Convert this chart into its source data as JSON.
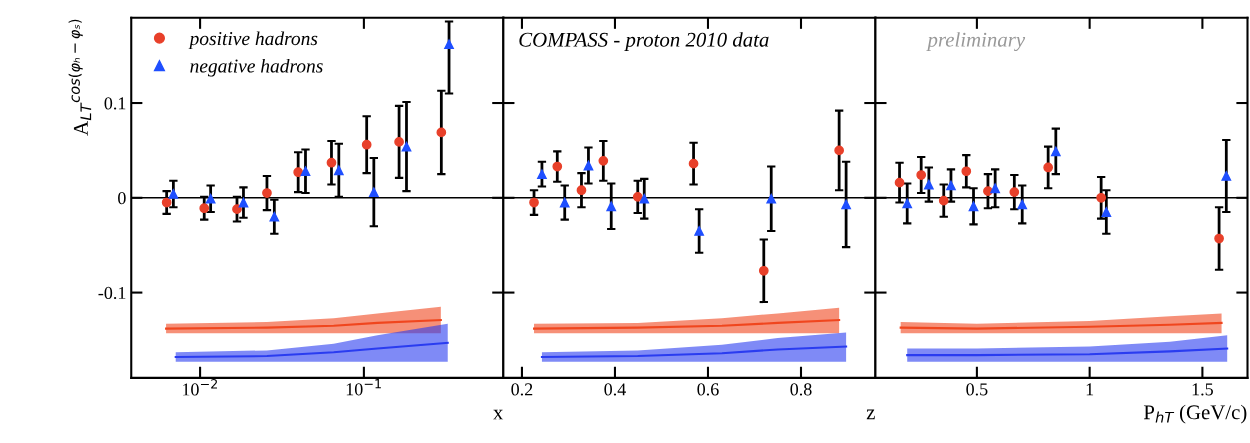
{
  "chart_data": [
    {
      "type": "scatter",
      "xlabel": "x",
      "ylabel": "A$_{LT}$$^{cos(φₕ−φₛ)}$",
      "log": "x",
      "xlim": [
        0.0038,
        0.71
      ],
      "ylim": [
        -0.19,
        0.19
      ],
      "xticks": [
        {
          "value": 0.01,
          "label": "10$^{−2}$"
        },
        {
          "value": 0.1,
          "label": "10$^{−1}$"
        }
      ],
      "yticks": [
        {
          "value": -0.1,
          "label": "-0.1"
        },
        0,
        0.1
      ],
      "legend": "top left",
      "ref_lines": [
        {
          "axis": "y",
          "value": 0,
          "color": "#000000"
        }
      ],
      "series": [
        {
          "name": "positive hadrons",
          "color": "#e8402a",
          "marker": "circle",
          "x": [
            0.00625,
            0.0106,
            0.0168,
            0.0256,
            0.0397,
            0.0634,
            0.104,
            0.164,
            0.297
          ],
          "values": [
            -0.005,
            -0.011,
            -0.012,
            0.005,
            0.027,
            0.037,
            0.056,
            0.059,
            0.069
          ],
          "errors": [
            0.012,
            0.012,
            0.013,
            0.018,
            0.021,
            0.023,
            0.03,
            0.038,
            0.044
          ]
        },
        {
          "name": "negative hadrons",
          "color": "#1f4fff",
          "marker": "triangle",
          "x": [
            0.00687,
            0.0116,
            0.0184,
            0.0284,
            0.044,
            0.0703,
            0.115,
            0.182,
            0.331
          ],
          "values": [
            0.004,
            -0.001,
            -0.005,
            -0.02,
            0.028,
            0.029,
            0.006,
            0.054,
            0.162
          ],
          "errors": [
            0.014,
            0.014,
            0.016,
            0.018,
            0.023,
            0.028,
            0.036,
            0.047,
            [
              0.11,
              0.186
            ]
          ]
        },
        {
          "type": "line",
          "color": "#f0461e",
          "x": [
            0.0062,
            0.0256,
            0.0654,
            0.121,
            0.295
          ],
          "values": [
            -0.138,
            -0.137,
            -0.135,
            -0.132,
            -0.129
          ],
          "lower": [
            -0.143,
            -0.143,
            -0.143,
            -0.143,
            -0.143
          ],
          "upper": [
            -0.133,
            -0.131,
            -0.127,
            -0.122,
            -0.115
          ]
        },
        {
          "type": "line",
          "color": "#2a3cf0",
          "x": [
            0.0071,
            0.0256,
            0.0654,
            0.121,
            0.325
          ],
          "values": [
            -0.168,
            -0.167,
            -0.163,
            -0.159,
            -0.153
          ],
          "lower": [
            -0.173,
            -0.173,
            -0.173,
            -0.173,
            -0.173
          ],
          "upper": [
            -0.163,
            -0.161,
            -0.154,
            -0.145,
            -0.133
          ]
        }
      ]
    },
    {
      "type": "scatter",
      "xlabel": "z",
      "xlim": [
        0.16,
        0.96
      ],
      "ylim": [
        -0.19,
        0.19
      ],
      "xticks": [
        0.2,
        0.4,
        0.6,
        0.8
      ],
      "yticks": [
        -0.1,
        0,
        0.1
      ],
      "tick_labels": "x",
      "annotations": [
        "COMPASS - proton 2010 data"
      ],
      "ref_lines": [
        {
          "axis": "y",
          "value": 0,
          "color": "#000000"
        }
      ],
      "series": [
        {
          "color": "#e8402a",
          "marker": "circle",
          "x": [
            0.226,
            0.276,
            0.328,
            0.375,
            0.449,
            0.569,
            0.72,
            0.882
          ],
          "values": [
            -0.005,
            0.033,
            0.008,
            0.039,
            0.001,
            0.036,
            -0.077,
            0.05
          ],
          "errors": [
            0.013,
            0.016,
            0.018,
            0.021,
            0.017,
            0.022,
            0.033,
            0.042
          ]
        },
        {
          "color": "#1f4fff",
          "marker": "triangle",
          "x": [
            0.243,
            0.292,
            0.343,
            0.392,
            0.463,
            0.581,
            0.736,
            0.897
          ],
          "values": [
            0.025,
            -0.005,
            0.034,
            -0.009,
            -0.001,
            -0.035,
            -0.001,
            -0.007
          ],
          "errors": [
            0.013,
            0.018,
            0.019,
            0.024,
            0.021,
            0.023,
            0.034,
            0.045
          ]
        },
        {
          "type": "line",
          "color": "#f0461e",
          "x": [
            0.226,
            0.449,
            0.63,
            0.75,
            0.882
          ],
          "values": [
            -0.138,
            -0.137,
            -0.135,
            -0.132,
            -0.129
          ],
          "lower": [
            -0.143,
            -0.143,
            -0.143,
            -0.143,
            -0.143
          ],
          "upper": [
            -0.133,
            -0.132,
            -0.127,
            -0.122,
            -0.116
          ]
        },
        {
          "type": "line",
          "color": "#2a3cf0",
          "x": [
            0.243,
            0.449,
            0.63,
            0.75,
            0.897
          ],
          "values": [
            -0.168,
            -0.167,
            -0.164,
            -0.16,
            -0.157
          ],
          "lower": [
            -0.173,
            -0.173,
            -0.173,
            -0.173,
            -0.173
          ],
          "upper": [
            -0.163,
            -0.161,
            -0.155,
            -0.148,
            -0.142
          ]
        }
      ]
    },
    {
      "type": "scatter",
      "xlabel": "P$_{hT}$ (GeV/c)",
      "xlim": [
        0.05,
        1.7
      ],
      "ylim": [
        -0.19,
        0.19
      ],
      "xticks": [
        0.5,
        1,
        1.5
      ],
      "yticks": [
        -0.1,
        0,
        0.1
      ],
      "tick_labels": "x",
      "annotations": [
        "preliminary"
      ],
      "ref_lines": [
        {
          "axis": "y",
          "value": 0,
          "color": "#000000"
        }
      ],
      "series": [
        {
          "color": "#e8402a",
          "marker": "circle",
          "x": [
            0.157,
            0.253,
            0.353,
            0.453,
            0.549,
            0.666,
            0.816,
            1.051,
            1.574
          ],
          "values": [
            0.016,
            0.024,
            -0.003,
            0.028,
            0.007,
            0.006,
            0.032,
            0.0,
            -0.043
          ],
          "errors": [
            0.021,
            0.019,
            0.017,
            0.017,
            0.018,
            0.018,
            0.022,
            0.022,
            0.033
          ]
        },
        {
          "color": "#1f4fff",
          "marker": "triangle",
          "x": [
            0.191,
            0.287,
            0.385,
            0.485,
            0.581,
            0.701,
            0.85,
            1.074,
            1.606
          ],
          "values": [
            -0.006,
            0.014,
            0.013,
            -0.009,
            0.01,
            -0.007,
            0.049,
            -0.015,
            0.023
          ],
          "errors": [
            0.021,
            0.018,
            0.017,
            0.019,
            0.02,
            0.02,
            0.024,
            0.023,
            0.038
          ]
        },
        {
          "type": "line",
          "color": "#f0461e",
          "x": [
            0.162,
            0.5,
            1.0,
            1.356,
            1.585
          ],
          "values": [
            -0.137,
            -0.138,
            -0.136,
            -0.134,
            -0.132
          ],
          "lower": [
            -0.143,
            -0.143,
            -0.143,
            -0.143,
            -0.143
          ],
          "upper": [
            -0.131,
            -0.133,
            -0.13,
            -0.125,
            -0.122
          ]
        },
        {
          "type": "line",
          "color": "#2a3cf0",
          "x": [
            0.191,
            0.5,
            1.0,
            1.356,
            1.61
          ],
          "values": [
            -0.166,
            -0.166,
            -0.165,
            -0.162,
            -0.159
          ],
          "lower": [
            -0.173,
            -0.173,
            -0.173,
            -0.173,
            -0.173
          ],
          "upper": [
            -0.159,
            -0.159,
            -0.157,
            -0.152,
            -0.145
          ]
        }
      ]
    }
  ]
}
